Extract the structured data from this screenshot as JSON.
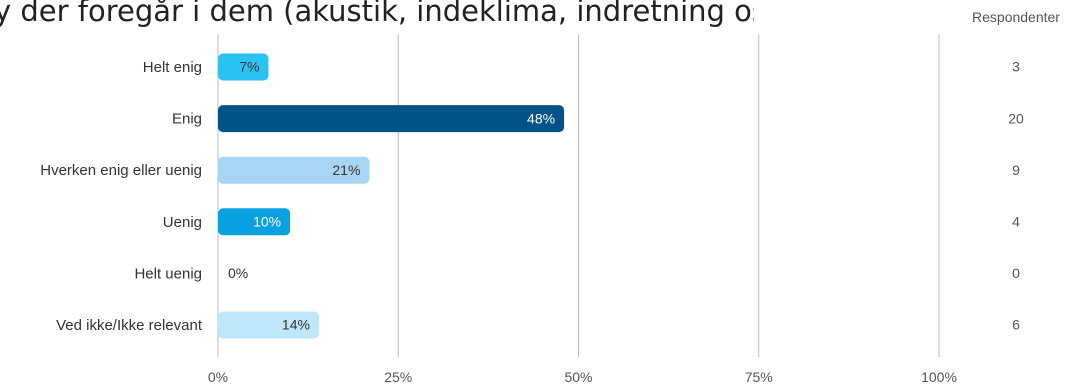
{
  "title": "y der foregår i dem (akustik, indeklima, indretning osv.)",
  "respondents_header": "Respondenter",
  "colors": {
    "helt_enig": "#29C3F2",
    "enig": "#005288",
    "hverken": "#A9D5F5",
    "uenig": "#0AA1E2",
    "helt_uenig": "#29C3F2",
    "ved_ikke": "#BEE7FA",
    "gridline": "#BDBDBD",
    "label_dark": "#333333",
    "label_light": "#FFFFFF"
  },
  "chart_data": {
    "type": "bar",
    "orientation": "horizontal",
    "categories": [
      "Helt enig",
      "Enig",
      "Hverken enig eller uenig",
      "Uenig",
      "Helt uenig",
      "Ved ikke/Ikke relevant"
    ],
    "values": [
      7,
      48,
      21,
      10,
      0,
      14
    ],
    "value_labels": [
      "7%",
      "48%",
      "21%",
      "10%",
      "0%",
      "14%"
    ],
    "respondents": [
      "3",
      "20",
      "9",
      "4",
      "0",
      "6"
    ],
    "xlim": [
      0,
      100
    ],
    "xticks": [
      "0%",
      "25%",
      "50%",
      "75%",
      "100%"
    ],
    "xtick_values": [
      0,
      25,
      50,
      75,
      100
    ],
    "grid": true,
    "label_color_keys": [
      "label_dark",
      "label_light",
      "label_dark",
      "label_light",
      "label_dark",
      "label_dark"
    ],
    "color_keys": [
      "helt_enig",
      "enig",
      "hverken",
      "uenig",
      "helt_uenig",
      "ved_ikke"
    ]
  }
}
